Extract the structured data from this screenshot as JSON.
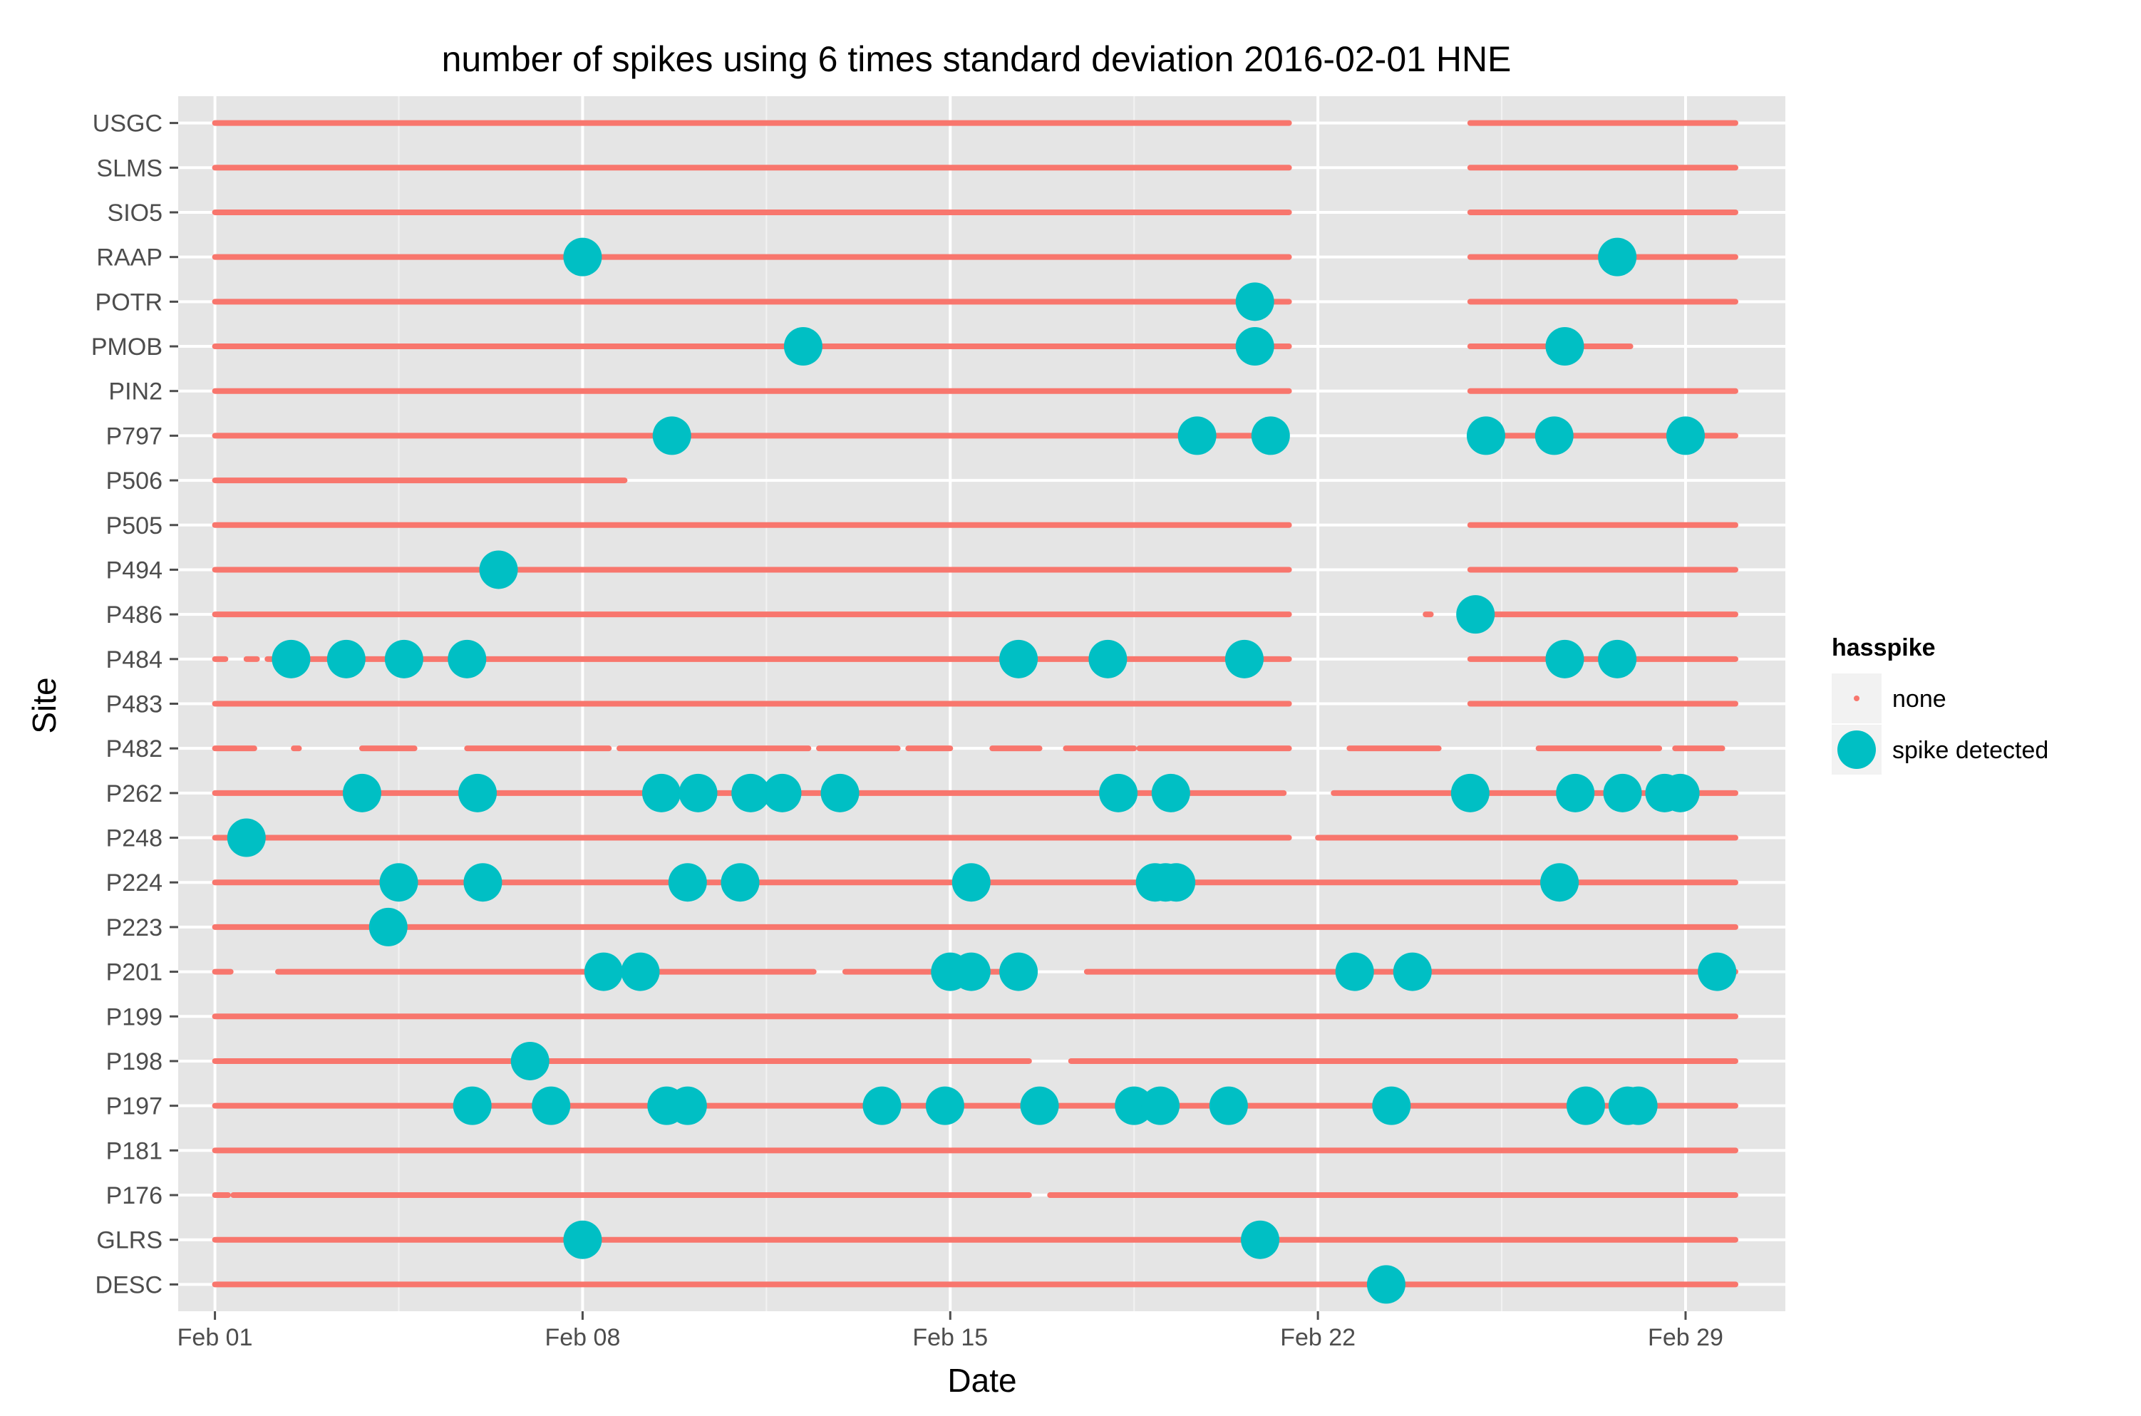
{
  "chart_data": {
    "type": "scatter",
    "title": "number of spikes using  6 times standard deviation 2016-02-01 HNE",
    "xlabel": "Date",
    "ylabel": "Site",
    "x_ticks": [
      {
        "day": 1,
        "label": "Feb 01"
      },
      {
        "day": 8,
        "label": "Feb 08"
      },
      {
        "day": 15,
        "label": "Feb 15"
      },
      {
        "day": 22,
        "label": "Feb 22"
      },
      {
        "day": 29,
        "label": "Feb 29"
      }
    ],
    "x_range": [
      0.3,
      30.9
    ],
    "y_categories": [
      "USGC",
      "SLMS",
      "SIO5",
      "RAAP",
      "POTR",
      "PMOB",
      "PIN2",
      "P797",
      "P506",
      "P505",
      "P494",
      "P486",
      "P484",
      "P483",
      "P482",
      "P262",
      "P248",
      "P224",
      "P223",
      "P201",
      "P199",
      "P198",
      "P197",
      "P181",
      "P176",
      "GLRS",
      "DESC"
    ],
    "legend": {
      "title": "hasspike",
      "position": "right",
      "entries": [
        {
          "label": "none",
          "color": "#F8766D"
        },
        {
          "label": "spike detected",
          "color": "#00BFC4"
        }
      ]
    },
    "series": [
      {
        "name": "none",
        "color": "#F8766D",
        "segments": {
          "USGC": [
            [
              1.0,
              21.45
            ],
            [
              24.9,
              29.95
            ]
          ],
          "SLMS": [
            [
              1.0,
              21.45
            ],
            [
              24.9,
              29.95
            ]
          ],
          "SIO5": [
            [
              1.0,
              21.45
            ],
            [
              24.9,
              29.95
            ]
          ],
          "RAAP": [
            [
              1.0,
              21.45
            ],
            [
              24.9,
              29.95
            ]
          ],
          "POTR": [
            [
              1.0,
              21.45
            ],
            [
              24.9,
              29.95
            ]
          ],
          "PMOB": [
            [
              1.0,
              21.45
            ],
            [
              24.9,
              27.95
            ]
          ],
          "PIN2": [
            [
              1.0,
              21.45
            ],
            [
              24.9,
              29.95
            ]
          ],
          "P797": [
            [
              1.0,
              21.2
            ],
            [
              24.9,
              29.95
            ]
          ],
          "P506": [
            [
              1.0,
              8.8
            ]
          ],
          "P505": [
            [
              1.0,
              21.45
            ],
            [
              24.9,
              29.95
            ]
          ],
          "P494": [
            [
              1.0,
              21.45
            ],
            [
              24.9,
              29.95
            ]
          ],
          "P486": [
            [
              1.0,
              21.45
            ],
            [
              24.05,
              24.15
            ],
            [
              24.9,
              29.95
            ]
          ],
          "P484": [
            [
              1.0,
              1.2
            ],
            [
              1.6,
              1.8
            ],
            [
              2.0,
              21.45
            ],
            [
              24.9,
              29.95
            ]
          ],
          "P483": [
            [
              1.0,
              21.45
            ],
            [
              24.9,
              29.95
            ]
          ],
          "P482": [
            [
              1.0,
              1.75
            ],
            [
              2.5,
              2.6
            ],
            [
              3.8,
              4.8
            ],
            [
              5.8,
              8.5
            ],
            [
              8.7,
              12.3
            ],
            [
              12.5,
              14.0
            ],
            [
              14.2,
              15.0
            ],
            [
              15.8,
              16.7
            ],
            [
              17.2,
              18.5
            ],
            [
              18.6,
              21.45
            ],
            [
              22.6,
              24.3
            ],
            [
              26.2,
              28.5
            ],
            [
              28.8,
              29.7
            ]
          ],
          "P262": [
            [
              1.0,
              21.35
            ],
            [
              22.3,
              29.95
            ]
          ],
          "P248": [
            [
              1.0,
              21.45
            ],
            [
              22.0,
              29.95
            ]
          ],
          "P224": [
            [
              1.0,
              29.95
            ]
          ],
          "P223": [
            [
              1.0,
              29.95
            ]
          ],
          "P201": [
            [
              1.0,
              1.3
            ],
            [
              2.2,
              12.4
            ],
            [
              13.0,
              16.5
            ],
            [
              17.6,
              29.95
            ]
          ],
          "P199": [
            [
              1.0,
              29.95
            ]
          ],
          "P198": [
            [
              1.0,
              16.5
            ],
            [
              17.3,
              29.95
            ]
          ],
          "P197": [
            [
              1.0,
              29.95
            ]
          ],
          "P181": [
            [
              1.0,
              29.95
            ]
          ],
          "P176": [
            [
              1.0,
              1.25
            ],
            [
              1.35,
              16.5
            ],
            [
              16.9,
              29.95
            ]
          ],
          "GLRS": [
            [
              1.0,
              29.95
            ]
          ],
          "DESC": [
            [
              1.0,
              29.95
            ]
          ]
        }
      },
      {
        "name": "spike detected",
        "color": "#00BFC4",
        "points": {
          "RAAP": [
            8.0,
            27.7
          ],
          "POTR": [
            20.8
          ],
          "PMOB": [
            12.2,
            20.8,
            26.7
          ],
          "P797": [
            9.7,
            19.7,
            21.1,
            25.2,
            26.5,
            29.0
          ],
          "P494": [
            6.4
          ],
          "P486": [
            25.0
          ],
          "P484": [
            2.45,
            3.5,
            4.6,
            5.8,
            16.3,
            18.0,
            20.6,
            26.7,
            27.7
          ],
          "P262": [
            3.8,
            6.0,
            9.5,
            10.2,
            11.2,
            11.8,
            12.9,
            18.2,
            19.2,
            24.9,
            26.9,
            27.8,
            28.6,
            28.9
          ],
          "P248": [
            1.6
          ],
          "P224": [
            4.5,
            6.1,
            10.0,
            11.0,
            15.4,
            18.9,
            19.1,
            19.3,
            26.6
          ],
          "P223": [
            4.3
          ],
          "P201": [
            8.4,
            9.1,
            15.0,
            15.4,
            16.3,
            22.7,
            23.8,
            29.6
          ],
          "P198": [
            7.0
          ],
          "P197": [
            5.9,
            7.4,
            9.6,
            10.0,
            13.7,
            14.9,
            16.7,
            18.5,
            19.0,
            20.3,
            23.4,
            27.1,
            27.9,
            28.1
          ],
          "GLRS": [
            8.0,
            20.9
          ],
          "DESC": [
            23.3
          ]
        }
      }
    ]
  }
}
